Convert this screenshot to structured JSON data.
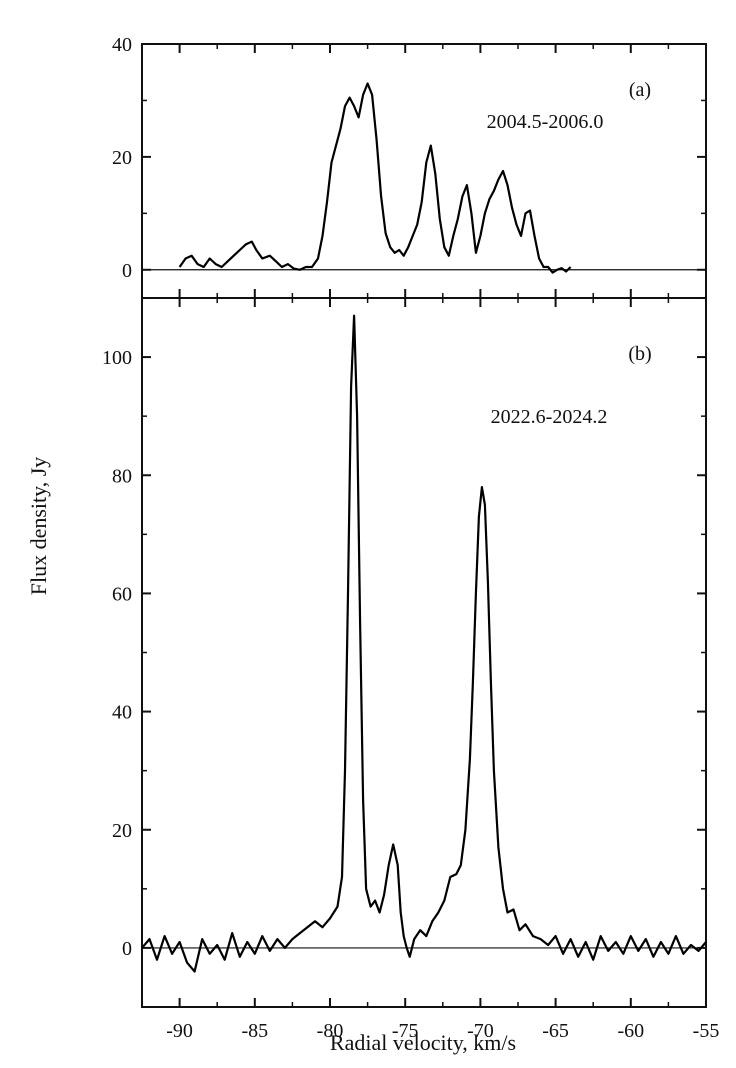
{
  "figure": {
    "xlabel": "Radial velocity, km/s",
    "ylabel": "Flux density, Jy"
  },
  "chart_data": [
    {
      "type": "line",
      "panel_label": "(a)",
      "annotation": "2004.5-2006.0",
      "xlim": [
        -92.5,
        -55
      ],
      "ylim": [
        -5,
        40
      ],
      "yticks": [
        0,
        20,
        40
      ],
      "ytick_labels": [
        "0",
        "20",
        "40"
      ],
      "baseline": 0,
      "grid": false,
      "series": [
        {
          "x": [
            -90.0,
            -89.6,
            -89.2,
            -88.8,
            -88.4,
            -88.0,
            -87.6,
            -87.2,
            -86.8,
            -86.4,
            -86.0,
            -85.6,
            -85.2,
            -84.9,
            -84.5,
            -84.0,
            -83.6,
            -83.2,
            -82.8,
            -82.4,
            -82.0,
            -81.6,
            -81.2,
            -80.8,
            -80.5,
            -80.2,
            -79.9,
            -79.6,
            -79.3,
            -79.0,
            -78.7,
            -78.4,
            -78.1,
            -77.8,
            -77.5,
            -77.2,
            -76.9,
            -76.6,
            -76.3,
            -76.0,
            -75.7,
            -75.4,
            -75.1,
            -74.8,
            -74.5,
            -74.2,
            -73.9,
            -73.6,
            -73.3,
            -73.0,
            -72.7,
            -72.4,
            -72.1,
            -71.8,
            -71.5,
            -71.2,
            -70.9,
            -70.6,
            -70.3,
            -70.0,
            -69.7,
            -69.4,
            -69.1,
            -68.8,
            -68.5,
            -68.2,
            -67.9,
            -67.6,
            -67.3,
            -67.0,
            -66.7,
            -66.4,
            -66.1,
            -65.8,
            -65.5,
            -65.2,
            -64.9,
            -64.6,
            -64.3,
            -64.0
          ],
          "y": [
            0.5,
            2.0,
            2.5,
            1.0,
            0.5,
            2.0,
            1.0,
            0.5,
            1.5,
            2.5,
            3.5,
            4.5,
            5.0,
            3.5,
            2.0,
            2.5,
            1.5,
            0.5,
            1.0,
            0.2,
            0.0,
            0.5,
            0.5,
            2.0,
            6.0,
            12.0,
            19.0,
            22.0,
            25.0,
            29.0,
            30.5,
            29.0,
            27.0,
            31.0,
            33.0,
            31.0,
            23.0,
            13.0,
            6.5,
            4.0,
            3.0,
            3.5,
            2.5,
            4.0,
            6.0,
            8.0,
            12.0,
            19.0,
            22.0,
            17.0,
            9.0,
            4.0,
            2.5,
            6.0,
            9.0,
            13.0,
            15.0,
            10.0,
            3.0,
            6.0,
            10.0,
            12.5,
            14.0,
            16.0,
            17.5,
            15.0,
            11.0,
            8.0,
            6.0,
            10.0,
            10.5,
            6.0,
            2.0,
            0.5,
            0.5,
            -0.5,
            0.0,
            0.3,
            -0.3,
            0.5
          ]
        }
      ]
    },
    {
      "type": "line",
      "panel_label": "(b)",
      "annotation": "2022.6-2024.2",
      "xlim": [
        -92.5,
        -55
      ],
      "ylim": [
        -10,
        110
      ],
      "xticks": [
        -90,
        -85,
        -80,
        -75,
        -70,
        -65,
        -60,
        -55
      ],
      "xtick_labels": [
        "-90",
        "-85",
        "-80",
        "-75",
        "-70",
        "-65",
        "-60",
        "-55"
      ],
      "yticks": [
        0,
        20,
        40,
        60,
        80,
        100
      ],
      "ytick_labels": [
        "0",
        "20",
        "40",
        "60",
        "80",
        "100"
      ],
      "baseline": 0,
      "grid": false,
      "series": [
        {
          "x": [
            -92.5,
            -92.0,
            -91.5,
            -91.0,
            -90.5,
            -90.0,
            -89.5,
            -89.0,
            -88.5,
            -88.0,
            -87.5,
            -87.0,
            -86.5,
            -86.0,
            -85.5,
            -85.0,
            -84.5,
            -84.0,
            -83.5,
            -83.0,
            -82.5,
            -82.0,
            -81.5,
            -81.0,
            -80.5,
            -80.0,
            -79.5,
            -79.2,
            -79.0,
            -78.8,
            -78.6,
            -78.4,
            -78.2,
            -78.0,
            -77.8,
            -77.6,
            -77.3,
            -77.0,
            -76.7,
            -76.4,
            -76.1,
            -75.8,
            -75.5,
            -75.3,
            -75.1,
            -74.9,
            -74.7,
            -74.4,
            -74.0,
            -73.6,
            -73.2,
            -72.8,
            -72.4,
            -72.0,
            -71.6,
            -71.3,
            -71.0,
            -70.7,
            -70.5,
            -70.3,
            -70.1,
            -69.9,
            -69.7,
            -69.5,
            -69.3,
            -69.1,
            -68.8,
            -68.5,
            -68.2,
            -67.8,
            -67.4,
            -67.0,
            -66.5,
            -66.0,
            -65.5,
            -65.0,
            -64.5,
            -64.0,
            -63.5,
            -63.0,
            -62.5,
            -62.0,
            -61.5,
            -61.0,
            -60.5,
            -60.0,
            -59.5,
            -59.0,
            -58.5,
            -58.0,
            -57.5,
            -57.0,
            -56.5,
            -56.0,
            -55.5,
            -55.0
          ],
          "y": [
            0.0,
            1.5,
            -2.0,
            2.0,
            -1.0,
            1.0,
            -2.5,
            -4.0,
            1.5,
            -1.0,
            0.5,
            -2.0,
            2.5,
            -1.5,
            1.0,
            -1.0,
            2.0,
            -0.5,
            1.5,
            0.0,
            1.5,
            2.5,
            3.5,
            4.5,
            3.5,
            5.0,
            7.0,
            12.0,
            30.0,
            60.0,
            95.0,
            107.0,
            90.0,
            55.0,
            25.0,
            10.0,
            7.0,
            8.0,
            6.0,
            9.0,
            14.0,
            17.5,
            14.0,
            6.0,
            2.0,
            0.0,
            -1.5,
            1.5,
            3.0,
            2.0,
            4.5,
            6.0,
            8.0,
            12.0,
            12.5,
            14.0,
            20.0,
            32.0,
            45.0,
            60.0,
            73.0,
            78.0,
            75.0,
            62.0,
            45.0,
            30.0,
            17.0,
            10.0,
            6.0,
            6.5,
            3.0,
            4.0,
            2.0,
            1.5,
            0.5,
            2.0,
            -1.0,
            1.5,
            -1.5,
            1.0,
            -2.0,
            2.0,
            -0.5,
            1.0,
            -1.0,
            2.0,
            -0.5,
            1.5,
            -1.5,
            1.0,
            -1.0,
            2.0,
            -1.0,
            0.5,
            -0.5,
            1.0
          ]
        }
      ]
    }
  ]
}
